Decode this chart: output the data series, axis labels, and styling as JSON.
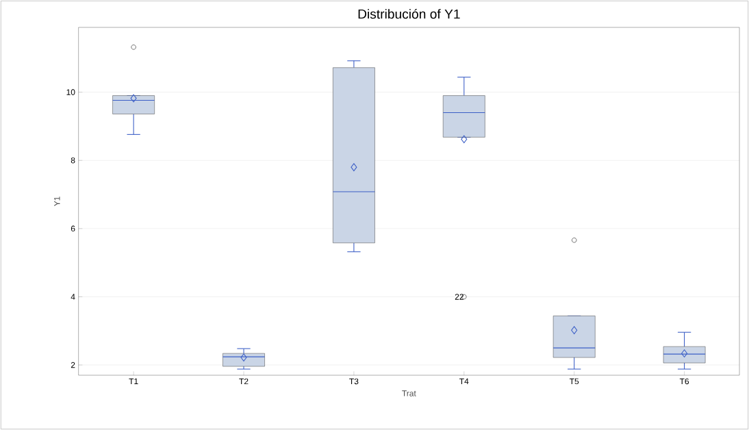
{
  "chart_data": {
    "type": "box",
    "title": "Distribución of Y1",
    "xlabel": "Trat",
    "ylabel": "Y1",
    "categories": [
      "T1",
      "T2",
      "T3",
      "T4",
      "T5",
      "T6"
    ],
    "series": [
      {
        "color": "#cad5e6",
        "boxes": [
          {
            "low": 8.76,
            "q1": 9.36,
            "median": 9.76,
            "q3": 9.9,
            "high": 9.9,
            "mean": 9.82,
            "outliers": [
              11.32
            ]
          },
          {
            "low": 1.88,
            "q1": 1.96,
            "median": 2.24,
            "q3": 2.34,
            "high": 2.48,
            "mean": 2.22
          },
          {
            "low": 5.32,
            "q1": 5.58,
            "median": 7.08,
            "q3": 10.72,
            "high": 10.92,
            "mean": 7.8
          },
          {
            "low": 8.68,
            "q1": 8.68,
            "median": 9.4,
            "q3": 9.9,
            "high": 10.44,
            "mean": 8.62,
            "outliers": [
              4.0
            ]
          },
          {
            "low": 1.88,
            "q1": 2.22,
            "median": 2.5,
            "q3": 3.44,
            "high": 3.44,
            "mean": 3.02,
            "outliers": [
              5.66
            ]
          },
          {
            "low": 1.88,
            "q1": 2.06,
            "median": 2.32,
            "q3": 2.54,
            "high": 2.96,
            "mean": 2.34
          }
        ]
      }
    ],
    "ylim": [
      1.7,
      11.9
    ],
    "yticks": [
      2,
      4,
      6,
      8,
      10
    ],
    "grid": "y",
    "annotations": [
      "22"
    ]
  }
}
